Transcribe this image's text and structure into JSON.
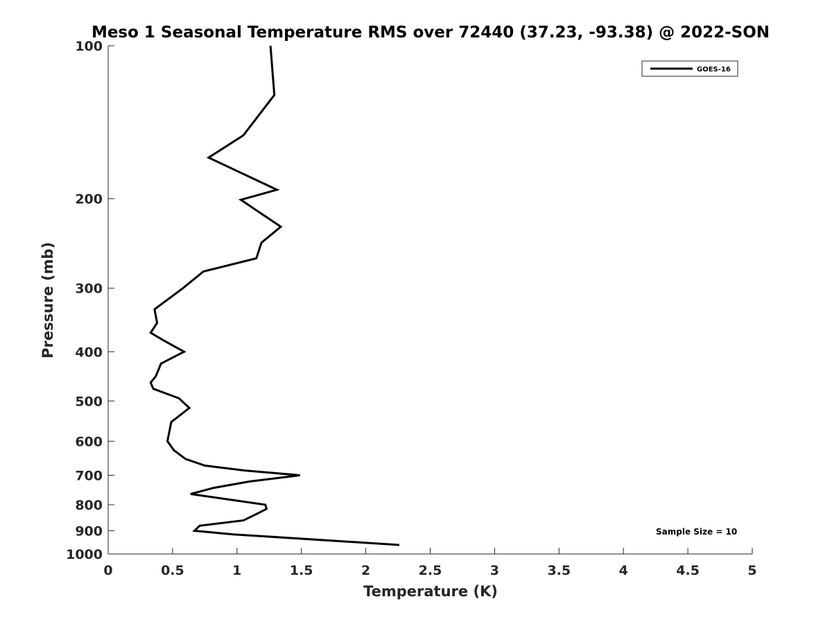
{
  "chart_data": {
    "type": "line",
    "title": "Meso 1 Seasonal Temperature RMS over 72440 (37.23, -93.38) @ 2022-SON",
    "xlabel": "Temperature (K)",
    "ylabel": "Pressure (mb)",
    "xlim": [
      0,
      5
    ],
    "ylim": [
      1000,
      100
    ],
    "yscale": "log",
    "y_reversed": true,
    "grid": false,
    "legend_position": "top-right",
    "x_ticks": [
      "0",
      "0.5",
      "1",
      "1.5",
      "2",
      "2.5",
      "3",
      "3.5",
      "4",
      "4.5",
      "5"
    ],
    "y_ticks": [
      "100",
      "200",
      "300",
      "400",
      "500",
      "600",
      "700",
      "800",
      "900",
      "1000"
    ],
    "annotation": "Sample Size = 10",
    "series": [
      {
        "name": "GOES-16",
        "color": "#000000",
        "points": [
          [
            1.26,
            100
          ],
          [
            1.29,
            125
          ],
          [
            1.05,
            150
          ],
          [
            0.78,
            166
          ],
          [
            1.31,
            192
          ],
          [
            1.03,
            201
          ],
          [
            1.34,
            227
          ],
          [
            1.19,
            244
          ],
          [
            1.15,
            262
          ],
          [
            0.74,
            278
          ],
          [
            0.58,
            300
          ],
          [
            0.36,
            330
          ],
          [
            0.38,
            351
          ],
          [
            0.33,
            367
          ],
          [
            0.43,
            380
          ],
          [
            0.59,
            400
          ],
          [
            0.41,
            422
          ],
          [
            0.37,
            447
          ],
          [
            0.33,
            460
          ],
          [
            0.35,
            473
          ],
          [
            0.55,
            494
          ],
          [
            0.63,
            516
          ],
          [
            0.49,
            550
          ],
          [
            0.46,
            600
          ],
          [
            0.51,
            625
          ],
          [
            0.6,
            650
          ],
          [
            0.75,
            670
          ],
          [
            1.06,
            685
          ],
          [
            1.49,
            700
          ],
          [
            1.1,
            720
          ],
          [
            0.82,
            741
          ],
          [
            0.64,
            762
          ],
          [
            1.22,
            800
          ],
          [
            1.23,
            815
          ],
          [
            1.17,
            830
          ],
          [
            1.05,
            859
          ],
          [
            0.71,
            880
          ],
          [
            0.67,
            900
          ],
          [
            0.97,
            915
          ],
          [
            2.26,
            960
          ]
        ]
      }
    ]
  }
}
